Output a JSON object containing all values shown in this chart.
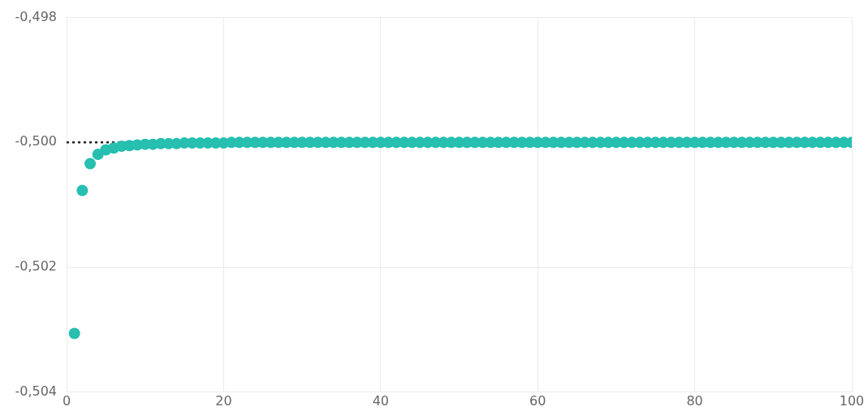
{
  "chart_data": {
    "type": "scatter",
    "x": [
      1,
      2,
      3,
      4,
      5,
      6,
      7,
      8,
      9,
      10,
      11,
      12,
      13,
      14,
      15,
      16,
      17,
      18,
      19,
      20,
      21,
      22,
      23,
      24,
      25,
      26,
      27,
      28,
      29,
      30,
      31,
      32,
      33,
      34,
      35,
      36,
      37,
      38,
      39,
      40,
      41,
      42,
      43,
      44,
      45,
      46,
      47,
      48,
      49,
      50,
      51,
      52,
      53,
      54,
      55,
      56,
      57,
      58,
      59,
      60,
      61,
      62,
      63,
      64,
      65,
      66,
      67,
      68,
      69,
      70,
      71,
      72,
      73,
      74,
      75,
      76,
      77,
      78,
      79,
      80,
      81,
      82,
      83,
      84,
      85,
      86,
      87,
      88,
      89,
      90,
      91,
      92,
      93,
      94,
      95,
      96,
      97,
      98,
      99,
      100
    ],
    "series": [
      {
        "color": "#26bfb0",
        "values": [
          -0.50306,
          -0.50077,
          -0.50034,
          -0.50019,
          -0.50012,
          -0.50009,
          -0.50006,
          -0.50005,
          -0.50004,
          -0.50003,
          -0.50003,
          -0.50002,
          -0.50002,
          -0.50002,
          -0.50001,
          -0.50001,
          -0.50001,
          -0.50001,
          -0.50001,
          -0.50001,
          -0.5,
          -0.5,
          -0.5,
          -0.5,
          -0.5,
          -0.5,
          -0.5,
          -0.5,
          -0.5,
          -0.5,
          -0.5,
          -0.5,
          -0.5,
          -0.5,
          -0.5,
          -0.5,
          -0.5,
          -0.5,
          -0.5,
          -0.5,
          -0.5,
          -0.5,
          -0.5,
          -0.5,
          -0.5,
          -0.5,
          -0.5,
          -0.5,
          -0.5,
          -0.5,
          -0.5,
          -0.5,
          -0.5,
          -0.5,
          -0.5,
          -0.5,
          -0.5,
          -0.5,
          -0.5,
          -0.5,
          -0.5,
          -0.5,
          -0.5,
          -0.5,
          -0.5,
          -0.5,
          -0.5,
          -0.5,
          -0.5,
          -0.5,
          -0.5,
          -0.5,
          -0.5,
          -0.5,
          -0.5,
          -0.5,
          -0.5,
          -0.5,
          -0.5,
          -0.5,
          -0.5,
          -0.5,
          -0.5,
          -0.5,
          -0.5,
          -0.5,
          -0.5,
          -0.5,
          -0.5,
          -0.5,
          -0.5,
          -0.5,
          -0.5,
          -0.5,
          -0.5,
          -0.5,
          -0.5,
          -0.5,
          -0.5,
          -0.5
        ]
      }
    ],
    "xlim": [
      0,
      100
    ],
    "xticks": [
      0,
      20,
      40,
      60,
      80,
      100
    ],
    "ylim": [
      -0.504,
      -0.498
    ],
    "yticks": [
      {
        "value": -0.504,
        "label": "-0,504"
      },
      {
        "value": -0.502,
        "label": "-0,502"
      },
      {
        "value": -0.5,
        "label": "-0,500"
      },
      {
        "value": -0.498,
        "label": "-0,498"
      }
    ],
    "ref_lines": [
      {
        "axis": "y",
        "value": -0.5,
        "color": "#222222",
        "line_style": "dotted"
      }
    ],
    "grid": true,
    "marker": "circle",
    "legend": false
  }
}
